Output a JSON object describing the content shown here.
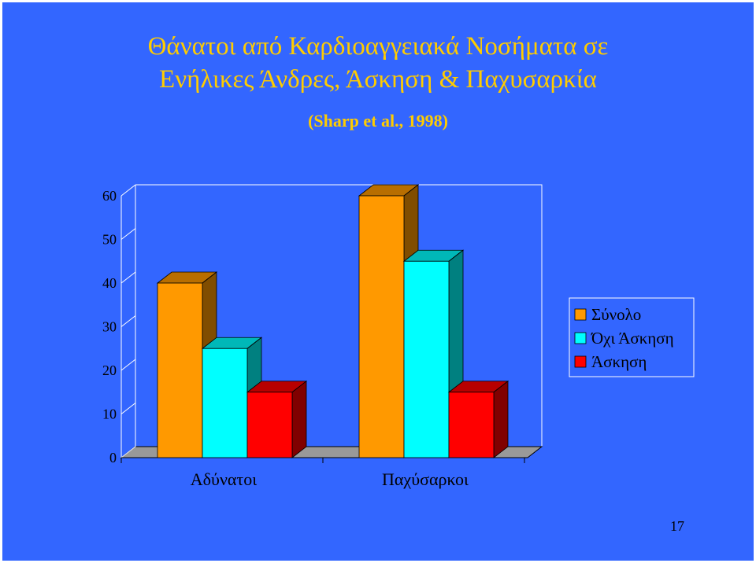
{
  "slide": {
    "title_line1": "Θάνατοι από Καρδιοαγγειακά Νοσήματα σε",
    "title_line2": "Ενήλικες Άνδρες, Άσκηση & Παχυσαρκία",
    "citation": "(Sharp et al., 1998)",
    "page_number": "17"
  },
  "colors": {
    "background": "#3366ff",
    "title": "#ffcc00"
  },
  "chart_data": {
    "type": "bar",
    "style": "3d-clustered-column",
    "title": "",
    "xlabel": "",
    "ylabel": "",
    "categories": [
      "Αδύνατοι",
      "Παχύσαρκοι"
    ],
    "series": [
      {
        "name": "Σύνολο",
        "values": [
          40,
          60
        ],
        "color": "#ff9900"
      },
      {
        "name": "Όχι Άσκηση",
        "values": [
          25,
          45
        ],
        "color": "#00ffff"
      },
      {
        "name": "Άσκηση",
        "values": [
          15,
          15
        ],
        "color": "#ff0000"
      }
    ],
    "yticks": [
      0,
      10,
      20,
      30,
      40,
      50,
      60
    ],
    "ylim": [
      0,
      60
    ],
    "grid": false,
    "legend": "right"
  }
}
